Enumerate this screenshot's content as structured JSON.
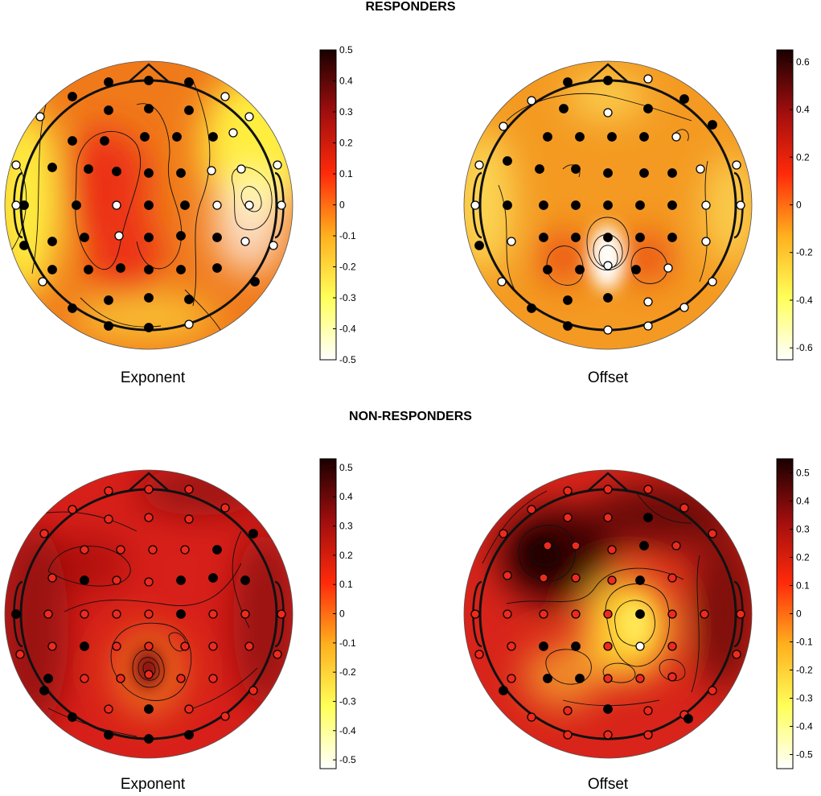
{
  "titles": {
    "top": "RESPONDERS",
    "bottom": "NON-RESPONDERS"
  },
  "panels": [
    {
      "id": "a",
      "label": "Exponent",
      "group": "RESPONDERS",
      "colorbar": {
        "ticks": [
          "0.5",
          "0.4",
          "0.3",
          "0.2",
          "0.1",
          "0",
          "-0.1",
          "-0.2",
          "-0.3",
          "-0.4",
          "-0.5"
        ],
        "range": [
          -0.5,
          0.5
        ]
      },
      "colors": {
        "base": "#f07a1a",
        "hot": "#ec3214",
        "cool": "#ffee40"
      }
    },
    {
      "id": "b",
      "label": "Offset",
      "group": "RESPONDERS",
      "colorbar": {
        "ticks": [
          "0.6",
          "0.4",
          "0.2",
          "0",
          "-0.2",
          "-0.4",
          "-0.6"
        ],
        "range": [
          -0.65,
          0.65
        ]
      },
      "colors": {
        "base": "#f49a22",
        "hot": "#ea4a18",
        "cool": "#fff06a"
      }
    },
    {
      "id": "c",
      "label": "Exponent",
      "group": "NON-RESPONDERS",
      "colorbar": {
        "ticks": [
          "0.5",
          "0.4",
          "0.3",
          "0.2",
          "0.1",
          "0",
          "-0.1",
          "-0.2",
          "-0.3",
          "-0.4",
          "-0.5"
        ],
        "range": [
          -0.53,
          0.53
        ]
      },
      "colors": {
        "base": "#d8201a",
        "hot": "#8a0c0c",
        "cool": "#f7a020"
      }
    },
    {
      "id": "d",
      "label": "Offset",
      "group": "NON-RESPONDERS",
      "colorbar": {
        "ticks": [
          "0.5",
          "0.4",
          "0.3",
          "0.2",
          "0.1",
          "0",
          "-0.1",
          "-0.2",
          "-0.3",
          "-0.4",
          "-0.5"
        ],
        "range": [
          -0.55,
          0.55
        ]
      },
      "colors": {
        "base": "#d8241a",
        "hot": "#3a0404",
        "cool": "#ffd030"
      }
    }
  ]
}
